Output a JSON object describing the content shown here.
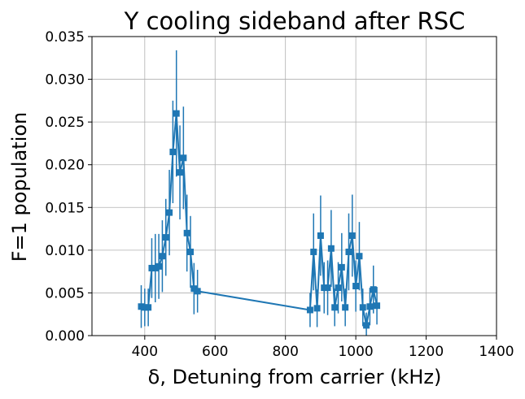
{
  "chart_data": {
    "type": "scatter",
    "title": "Y cooling sideband after RSC",
    "xlabel": "δ, Detuning from carrier (kHz)",
    "ylabel": "F=1 population",
    "xlim": [
      250,
      1400
    ],
    "ylim": [
      0,
      0.035
    ],
    "grid": true,
    "x_ticks": [
      "400",
      "600",
      "800",
      "1000",
      "1200",
      "1400"
    ],
    "y_ticks": [
      "0.000",
      "0.005",
      "0.010",
      "0.015",
      "0.020",
      "0.025",
      "0.030",
      "0.035"
    ],
    "x_tick_values": [
      400,
      600,
      800,
      1000,
      1200,
      1400
    ],
    "y_tick_values": [
      0,
      0.005,
      0.01,
      0.015,
      0.02,
      0.025,
      0.03,
      0.035
    ],
    "series": [
      {
        "color": "#1f77b4",
        "marker": "square",
        "points": [
          {
            "x": 390,
            "y": 0.0034,
            "err": 0.0025
          },
          {
            "x": 400,
            "y": 0.0033,
            "err": 0.0022
          },
          {
            "x": 410,
            "y": 0.0033,
            "err": 0.0022
          },
          {
            "x": 420,
            "y": 0.0079,
            "err": 0.0035
          },
          {
            "x": 430,
            "y": 0.0079,
            "err": 0.004
          },
          {
            "x": 440,
            "y": 0.0081,
            "err": 0.0038
          },
          {
            "x": 450,
            "y": 0.0093,
            "err": 0.0042
          },
          {
            "x": 460,
            "y": 0.0115,
            "err": 0.0045
          },
          {
            "x": 470,
            "y": 0.0144,
            "err": 0.005
          },
          {
            "x": 480,
            "y": 0.0215,
            "err": 0.006
          },
          {
            "x": 490,
            "y": 0.026,
            "err": 0.0074
          },
          {
            "x": 500,
            "y": 0.0191,
            "err": 0.0055
          },
          {
            "x": 510,
            "y": 0.0208,
            "err": 0.006
          },
          {
            "x": 520,
            "y": 0.012,
            "err": 0.0045
          },
          {
            "x": 530,
            "y": 0.0098,
            "err": 0.0042
          },
          {
            "x": 540,
            "y": 0.0055,
            "err": 0.003
          },
          {
            "x": 550,
            "y": 0.0052,
            "err": 0.0025
          },
          {
            "x": 870,
            "y": 0.003,
            "err": 0.002
          },
          {
            "x": 880,
            "y": 0.0098,
            "err": 0.0045
          },
          {
            "x": 890,
            "y": 0.0032,
            "err": 0.0022
          },
          {
            "x": 900,
            "y": 0.0117,
            "err": 0.0047
          },
          {
            "x": 910,
            "y": 0.0056,
            "err": 0.003
          },
          {
            "x": 920,
            "y": 0.0056,
            "err": 0.0032
          },
          {
            "x": 930,
            "y": 0.0102,
            "err": 0.0045
          },
          {
            "x": 940,
            "y": 0.0033,
            "err": 0.0022
          },
          {
            "x": 950,
            "y": 0.0056,
            "err": 0.003
          },
          {
            "x": 960,
            "y": 0.008,
            "err": 0.004
          },
          {
            "x": 970,
            "y": 0.0033,
            "err": 0.0022
          },
          {
            "x": 980,
            "y": 0.0098,
            "err": 0.0045
          },
          {
            "x": 990,
            "y": 0.0117,
            "err": 0.0048
          },
          {
            "x": 1000,
            "y": 0.0058,
            "err": 0.003
          },
          {
            "x": 1010,
            "y": 0.0093,
            "err": 0.004
          },
          {
            "x": 1020,
            "y": 0.0033,
            "err": 0.0022
          },
          {
            "x": 1030,
            "y": 0.0012,
            "err": 0.0015
          },
          {
            "x": 1040,
            "y": 0.0034,
            "err": 0.0022
          },
          {
            "x": 1050,
            "y": 0.0054,
            "err": 0.0028
          },
          {
            "x": 1060,
            "y": 0.0035,
            "err": 0.0022
          }
        ]
      }
    ]
  }
}
